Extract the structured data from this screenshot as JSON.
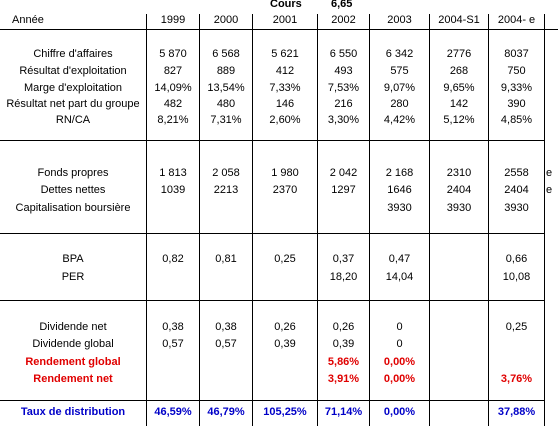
{
  "header": {
    "cours_label": "Cours",
    "cours_value": "6,65",
    "annee_label": "Année",
    "years": [
      "1999",
      "2000",
      "2001",
      "2002",
      "2003",
      "2004-S1",
      "2004- e"
    ]
  },
  "rows": [
    {
      "label": "Chiffre d'affaires",
      "values": [
        "5 870",
        "6 568",
        "5 621",
        "6 550",
        "6 342",
        "2776",
        "8037"
      ],
      "style": "normal"
    },
    {
      "label": "Résultat d'exploitation",
      "values": [
        "827",
        "889",
        "412",
        "493",
        "575",
        "268",
        "750"
      ],
      "style": "normal"
    },
    {
      "label": "Marge d'exploitation",
      "values": [
        "14,09%",
        "13,54%",
        "7,33%",
        "7,53%",
        "9,07%",
        "9,65%",
        "9,33%"
      ],
      "style": "normal"
    },
    {
      "label": "Résultat net part du groupe",
      "values": [
        "482",
        "480",
        "146",
        "216",
        "280",
        "142",
        "390"
      ],
      "style": "normal"
    },
    {
      "label": "RN/CA",
      "values": [
        "8,21%",
        "7,31%",
        "2,60%",
        "3,30%",
        "4,42%",
        "5,12%",
        "4,85%"
      ],
      "style": "normal"
    },
    {
      "label": "Fonds propres",
      "values": [
        "1 813",
        "2 058",
        "1 980",
        "2 042",
        "2 168",
        "2310",
        "2558"
      ],
      "style": "normal",
      "suffix": "e"
    },
    {
      "label": "Dettes nettes",
      "values": [
        "1039",
        "2213",
        "2370",
        "1297",
        "1646",
        "2404",
        "2404"
      ],
      "style": "normal",
      "suffix": "e"
    },
    {
      "label": "Capitalisation boursière",
      "values": [
        "",
        "",
        "",
        "",
        "3930",
        "3930",
        "3930"
      ],
      "style": "normal"
    },
    {
      "label": "BPA",
      "values": [
        "0,82",
        "0,81",
        "0,25",
        "0,37",
        "0,47",
        "",
        "0,66"
      ],
      "style": "normal"
    },
    {
      "label": "PER",
      "values": [
        "",
        "",
        "",
        "18,20",
        "14,04",
        "",
        "10,08"
      ],
      "style": "normal"
    },
    {
      "label": "Dividende net",
      "values": [
        "0,38",
        "0,38",
        "0,26",
        "0,26",
        "0",
        "",
        "0,25"
      ],
      "style": "normal"
    },
    {
      "label": "Dividende global",
      "values": [
        "0,57",
        "0,57",
        "0,39",
        "0,39",
        "0",
        "",
        ""
      ],
      "style": "normal"
    },
    {
      "label": "Rendement global",
      "values": [
        "",
        "",
        "",
        "5,86%",
        "0,00%",
        "",
        ""
      ],
      "style": "red"
    },
    {
      "label": "Rendement net",
      "values": [
        "",
        "",
        "",
        "3,91%",
        "0,00%",
        "",
        "3,76%"
      ],
      "style": "red"
    },
    {
      "label": "Taux de distribution",
      "values": [
        "46,59%",
        "46,79%",
        "105,25%",
        "71,14%",
        "0,00%",
        "",
        "37,88%"
      ],
      "style": "blue"
    }
  ],
  "colors": {
    "red": "#e00000",
    "blue": "#0000c8"
  }
}
